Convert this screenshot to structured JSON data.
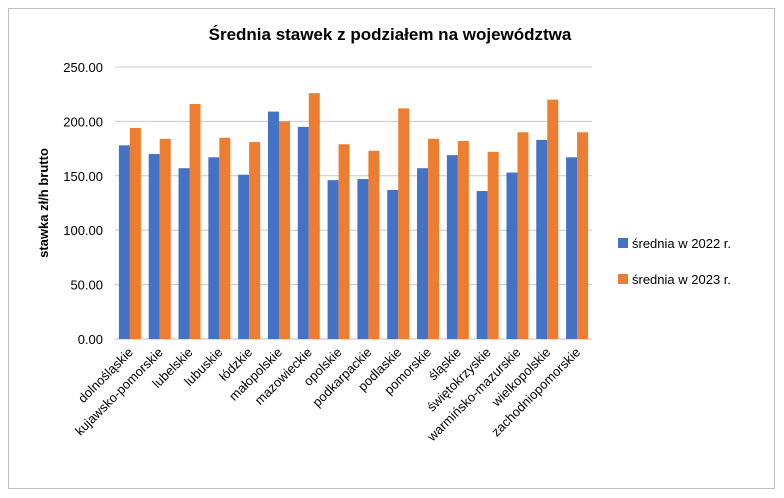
{
  "chart_data": {
    "type": "bar",
    "title": "Średnia stawek z podziałem na województwa",
    "xlabel": "",
    "ylabel": "stawka zł/h brutto",
    "ylim": [
      0,
      250
    ],
    "yticks": [
      "0.00",
      "50.00",
      "100.00",
      "150.00",
      "200.00",
      "250.00"
    ],
    "grid": true,
    "legend_position": "right",
    "categories": [
      "dolnośląskie",
      "kujawsko-pomorskie",
      "lubelskie",
      "lubuskie",
      "łódzkie",
      "małopolskie",
      "mazowieckie",
      "opolskie",
      "podkarpackie",
      "podlaskie",
      "pomorskie",
      "śląskie",
      "świętokrzyskie",
      "warmińsko-mazurskie",
      "wielkopolskie",
      "zachodniopomorskie"
    ],
    "series": [
      {
        "name": "średnia w 2022 r.",
        "color": "#4472c4",
        "values": [
          178,
          170,
          157,
          167,
          151,
          209,
          195,
          146,
          147,
          137,
          157,
          169,
          136,
          153,
          183,
          167
        ]
      },
      {
        "name": "średnia w 2023 r.",
        "color": "#ed7d31",
        "values": [
          194,
          184,
          216,
          185,
          181,
          200,
          226,
          179,
          173,
          212,
          184,
          182,
          172,
          190,
          220,
          190
        ]
      }
    ]
  }
}
